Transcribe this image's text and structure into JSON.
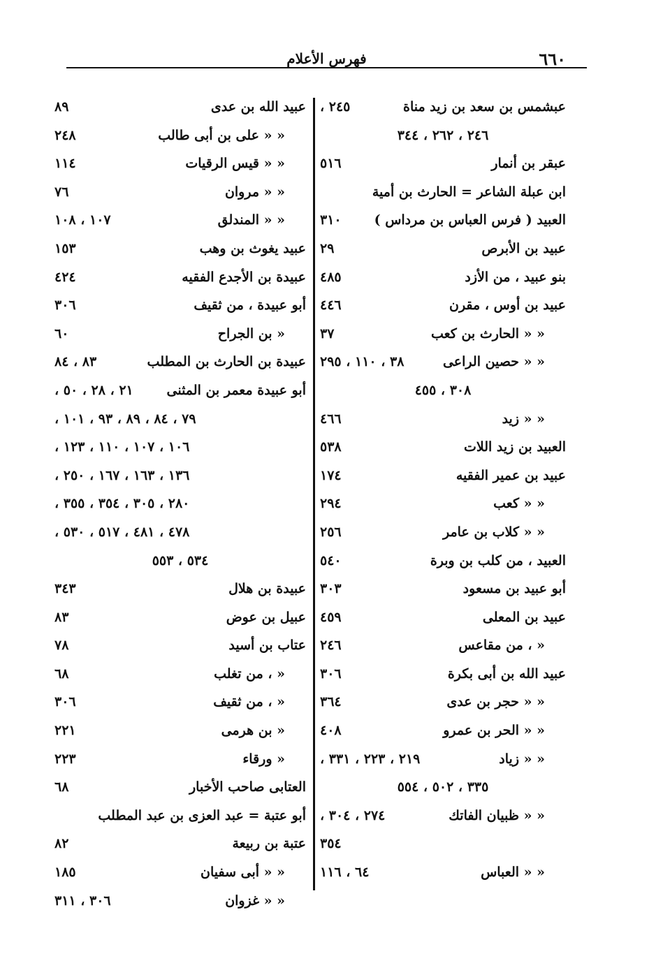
{
  "header": {
    "page_number": "٦٦٠",
    "title": "فهرس الأعلام"
  },
  "right_column": [
    {
      "name": "عبشمس بن سعد بن زيد مناة",
      "pages": "٢٤٥ ،"
    },
    {
      "cont": "٢٤٦ ، ٢٦٢ ، ٣٤٤"
    },
    {
      "name": "عبقر بن أنمار",
      "pages": "٥١٦"
    },
    {
      "name": "ابن عبلة الشاعر = الحارث بن أمية",
      "pages": ""
    },
    {
      "name": "العبيد ( فرس العباس بن مرداس )",
      "pages": "٣١٠"
    },
    {
      "name": "عبيد بن الأبرص",
      "pages": "٢٩"
    },
    {
      "name": "بنو عبيد ، من الأزد",
      "pages": "٤٨٥"
    },
    {
      "name": "عبيد بن أوس ، مقرن",
      "pages": "٤٤٦"
    },
    {
      "name": "« « الحارث بن كعب",
      "pages": "٣٧",
      "indent": true
    },
    {
      "name": "« « حصين الراعى",
      "pages": "٣٨ ، ١١٠ ، ٢٩٥",
      "indent": true
    },
    {
      "cont": "٣٠٨ ، ٤٥٥"
    },
    {
      "name": "« « زيد",
      "pages": "٤٦٦",
      "indent": true
    },
    {
      "name": "العبيد بن زيد اللات",
      "pages": "٥٣٨"
    },
    {
      "name": "عبيد بن عمير الفقيه",
      "pages": "١٧٤"
    },
    {
      "name": "« « كعب",
      "pages": "٢٩٤",
      "indent": true
    },
    {
      "name": "« « كلاب بن عامر",
      "pages": "٢٥٦",
      "indent": true
    },
    {
      "name": "العبيد ، من كلب بن وبرة",
      "pages": "٥٤٠"
    },
    {
      "name": "أبو عبيد بن مسعود",
      "pages": "٣٠٣"
    },
    {
      "name": "عبيد بن المعلى",
      "pages": "٤٥٩"
    },
    {
      "name": "« ، من مقاعس",
      "pages": "٢٤٦",
      "indent": true
    },
    {
      "name": "عبيد الله بن أبى بكرة",
      "pages": "٣٠٦"
    },
    {
      "name": "« « حجر بن عدى",
      "pages": "٣٦٤",
      "indent": true
    },
    {
      "name": "« « الحر بن عمرو",
      "pages": "٤٠٨",
      "indent": true
    },
    {
      "name": "« « زياد",
      "pages": "٢١٩ ، ٢٢٣ ، ٣٣١ ،",
      "indent": true
    },
    {
      "cont": "٣٣٥ ، ٥٠٢ ، ٥٥٤"
    },
    {
      "name": "« « ظبيان الفاتك",
      "pages": "٢٧٤ ، ٣٠٤ ،",
      "indent": true
    },
    {
      "contl": "٣٥٤"
    },
    {
      "name": "« « العباس",
      "pages": "٦٤ ، ١١٦",
      "indent": true
    }
  ],
  "left_column": [
    {
      "name": "عبيد الله بن عدى",
      "pages": "٨٩"
    },
    {
      "name": "« « على بن أبى طالب",
      "pages": "٢٤٨",
      "indent": true
    },
    {
      "name": "« « قيس الرقيات",
      "pages": "١١٤",
      "indent": true
    },
    {
      "name": "« « مروان",
      "pages": "٧٦",
      "indent": true
    },
    {
      "name": "« « المندلق",
      "pages": "١٠٧ ، ١٠٨",
      "indent": true
    },
    {
      "name": "عبيد يغوث بن وهب",
      "pages": "١٥٣"
    },
    {
      "name": "عبيدة بن الأجدع الفقيه",
      "pages": "٤٢٤"
    },
    {
      "name": "أبو عبيدة ، من ثقيف",
      "pages": "٣٠٦"
    },
    {
      "name": "« بن الجراح",
      "pages": "٦٠",
      "indent": true
    },
    {
      "name": "عبيدة بن الحارث بن المطلب",
      "pages": "٨٣ ، ٨٤"
    },
    {
      "name": "أبو عبيدة معمر بن المثنى",
      "pages": "٢١ ، ٢٨ ، ٥٠ ،"
    },
    {
      "contl": "٧٩ ، ٨٤ ، ٨٩ ، ٩٣ ، ١٠١ ،"
    },
    {
      "contl": "١٠٦ ، ١٠٧ ، ١١٠ ، ١٢٣ ،"
    },
    {
      "contl": "١٣٦ ، ١٦٣ ، ١٦٧ ، ٢٥٠ ،"
    },
    {
      "contl": "٢٨٠ ، ٣٠٥ ، ٣٥٤ ، ٣٥٥ ،"
    },
    {
      "contl": "٤٧٨ ، ٤٨١ ، ٥١٧ ، ٥٣٠ ،"
    },
    {
      "cont": "٥٣٤ ، ٥٥٣"
    },
    {
      "name": "عبيدة بن هلال",
      "pages": "٣٤٣"
    },
    {
      "name": "عبيل بن عوض",
      "pages": "٨٣"
    },
    {
      "name": "عتاب بن أسيد",
      "pages": "٧٨"
    },
    {
      "name": "« ، من تغلب",
      "pages": "٦٨",
      "indent": true
    },
    {
      "name": "« ، من ثقيف",
      "pages": "٣٠٦",
      "indent": true
    },
    {
      "name": "« بن هرمى",
      "pages": "٢٢١",
      "indent": true
    },
    {
      "name": "« ورقاء",
      "pages": "٢٢٣",
      "indent": true
    },
    {
      "name": "العتابى صاحب الأخبار",
      "pages": "٦٨"
    },
    {
      "name": "أبو عتبة = عبد العزى بن عبد المطلب",
      "pages": ""
    },
    {
      "name": "عتبة بن ربيعة",
      "pages": "٨٢"
    },
    {
      "name": "« « أبى سفيان",
      "pages": "١٨٥",
      "indent": true
    },
    {
      "name": "« « غزوان",
      "pages": "٣٠٦ ، ٣١١",
      "indent": true
    }
  ]
}
